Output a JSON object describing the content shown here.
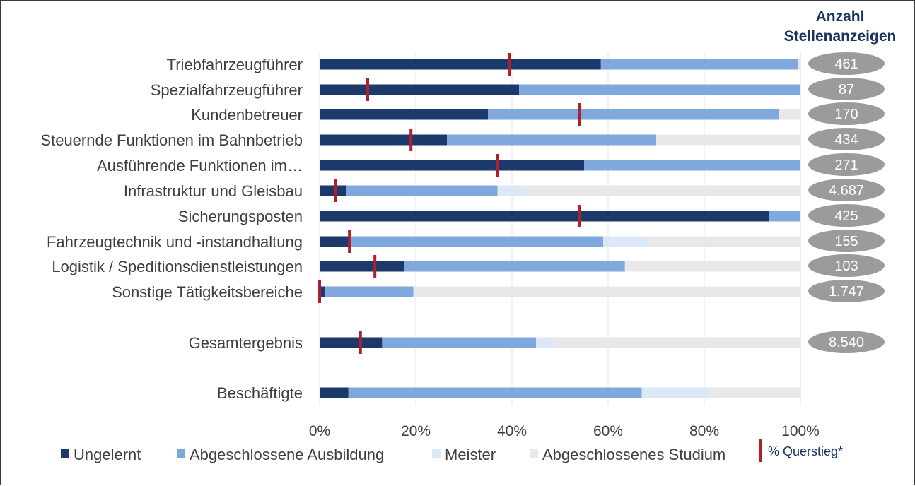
{
  "chart_data": {
    "type": "bar",
    "orientation": "horizontal",
    "stacked": true,
    "percent_stacked": true,
    "categories": [
      "Triebfahrzeugführer",
      "Spezialfahrzeugführer",
      "Kundenbetreuer",
      "Steuernde Funktionen im Bahnbetrieb",
      "Ausführende Funktionen im…",
      "Infrastruktur und Gleisbau",
      "Sicherungsposten",
      "Fahrzeugtechnik und -instandhaltung",
      "Logistik / Speditionsdienstleistungen",
      "Sonstige Tätigkeitsbereiche",
      "Gesamtergebnis",
      "Beschäftigte"
    ],
    "series": [
      {
        "name": "Ungelernt",
        "color": "#1b3a6b",
        "values": [
          58.5,
          41.5,
          35,
          26.5,
          55,
          5.5,
          93.5,
          6.5,
          17.5,
          1.2,
          13,
          6
        ]
      },
      {
        "name": "Abgeschlossene Ausbildung",
        "color": "#7fa9dd",
        "values": [
          41,
          58.5,
          60.5,
          43.5,
          45,
          31.5,
          6.5,
          52.5,
          46,
          18.3,
          32,
          61
        ]
      },
      {
        "name": "Meister",
        "color": "#dce8f7",
        "values": [
          0,
          0,
          0,
          0,
          0,
          5.8,
          0,
          9.5,
          0,
          0,
          3.5,
          14
        ]
      },
      {
        "name": "Abgeschlossenes Studium",
        "color": "#e8e8e8",
        "values": [
          0.5,
          0,
          4.5,
          30,
          0,
          57.2,
          0,
          31.5,
          36.5,
          80.5,
          51.5,
          19
        ]
      }
    ],
    "marker_series": {
      "name": "% Querstieg*",
      "color": "#b0202a",
      "values": [
        39.5,
        10,
        54,
        19,
        37,
        3.3,
        54,
        6.2,
        11.5,
        0,
        8.5,
        null
      ]
    },
    "counts_header": [
      "Anzahl",
      "Stellenanzeigen"
    ],
    "counts": [
      "461",
      "87",
      "170",
      "434",
      "271",
      "4.687",
      "425",
      "155",
      "103",
      "1.747",
      "8.540",
      ""
    ],
    "xlim": [
      0,
      100
    ],
    "x_ticks": [
      "0%",
      "20%",
      "40%",
      "60%",
      "80%",
      "100%"
    ],
    "grid": "vertical",
    "legend_position": "bottom"
  }
}
